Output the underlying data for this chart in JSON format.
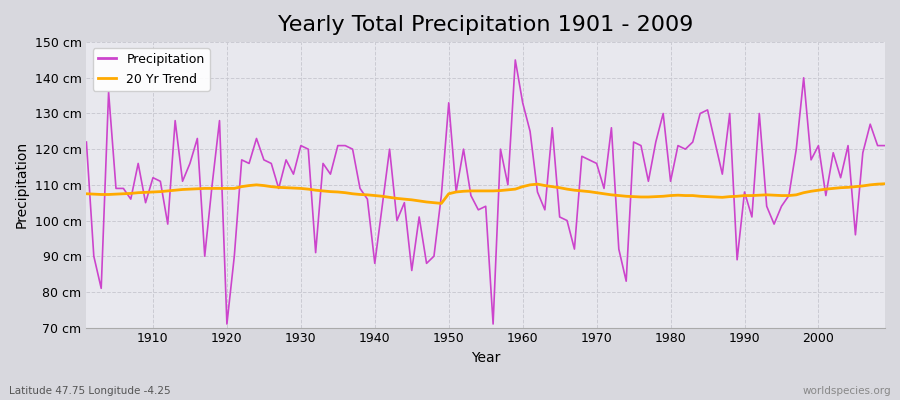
{
  "title": "Yearly Total Precipitation 1901 - 2009",
  "xlabel": "Year",
  "ylabel": "Precipitation",
  "subtitle": "Latitude 47.75 Longitude -4.25",
  "watermark": "worldspecies.org",
  "years": [
    1901,
    1902,
    1903,
    1904,
    1905,
    1906,
    1907,
    1908,
    1909,
    1910,
    1911,
    1912,
    1913,
    1914,
    1915,
    1916,
    1917,
    1918,
    1919,
    1920,
    1921,
    1922,
    1923,
    1924,
    1925,
    1926,
    1927,
    1928,
    1929,
    1930,
    1931,
    1932,
    1933,
    1934,
    1935,
    1936,
    1937,
    1938,
    1939,
    1940,
    1941,
    1942,
    1943,
    1944,
    1945,
    1946,
    1947,
    1948,
    1949,
    1950,
    1951,
    1952,
    1953,
    1954,
    1955,
    1956,
    1957,
    1958,
    1959,
    1960,
    1961,
    1962,
    1963,
    1964,
    1965,
    1966,
    1967,
    1968,
    1969,
    1970,
    1971,
    1972,
    1973,
    1974,
    1975,
    1976,
    1977,
    1978,
    1979,
    1980,
    1981,
    1982,
    1983,
    1984,
    1985,
    1986,
    1987,
    1988,
    1989,
    1990,
    1991,
    1992,
    1993,
    1994,
    1995,
    1996,
    1997,
    1998,
    1999,
    2000,
    2001,
    2002,
    2003,
    2004,
    2005,
    2006,
    2007,
    2008,
    2009
  ],
  "precipitation": [
    122,
    90,
    81,
    136,
    109,
    109,
    106,
    116,
    105,
    112,
    111,
    99,
    128,
    111,
    116,
    123,
    90,
    110,
    128,
    71,
    90,
    117,
    116,
    123,
    117,
    116,
    109,
    117,
    113,
    121,
    120,
    91,
    116,
    113,
    121,
    121,
    120,
    109,
    106,
    88,
    104,
    120,
    100,
    105,
    86,
    101,
    88,
    90,
    107,
    133,
    108,
    120,
    107,
    103,
    104,
    71,
    120,
    110,
    145,
    133,
    125,
    108,
    103,
    126,
    101,
    100,
    92,
    118,
    117,
    116,
    109,
    126,
    92,
    83,
    122,
    121,
    111,
    122,
    130,
    111,
    121,
    120,
    122,
    130,
    131,
    122,
    113,
    130,
    89,
    108,
    101,
    130,
    104,
    99,
    104,
    107,
    120,
    140,
    117,
    121,
    107,
    119,
    112,
    121,
    96,
    119,
    127,
    121,
    121
  ],
  "trend": [
    107.5,
    107.4,
    107.3,
    107.3,
    107.4,
    107.5,
    107.6,
    107.8,
    107.9,
    108.0,
    108.1,
    108.3,
    108.5,
    108.7,
    108.8,
    108.9,
    109.0,
    109.0,
    109.0,
    109.0,
    109.0,
    109.5,
    109.8,
    110.0,
    109.8,
    109.5,
    109.3,
    109.2,
    109.1,
    109.0,
    108.8,
    108.5,
    108.3,
    108.1,
    108.0,
    107.8,
    107.5,
    107.3,
    107.2,
    107.0,
    106.8,
    106.5,
    106.2,
    106.0,
    105.8,
    105.5,
    105.2,
    105.0,
    104.8,
    107.5,
    108.0,
    108.2,
    108.3,
    108.3,
    108.3,
    108.3,
    108.4,
    108.6,
    108.8,
    109.5,
    110.0,
    110.2,
    109.8,
    109.5,
    109.2,
    108.8,
    108.5,
    108.3,
    108.1,
    107.8,
    107.5,
    107.2,
    107.0,
    106.8,
    106.7,
    106.6,
    106.6,
    106.7,
    106.8,
    107.0,
    107.1,
    107.0,
    107.0,
    106.8,
    106.7,
    106.6,
    106.5,
    106.7,
    106.8,
    107.0,
    107.0,
    107.1,
    107.2,
    107.1,
    107.0,
    107.0,
    107.2,
    107.8,
    108.2,
    108.5,
    108.8,
    109.0,
    109.2,
    109.3,
    109.5,
    109.7,
    110.0,
    110.2,
    110.3
  ],
  "precip_color": "#cc44cc",
  "trend_color": "#ffaa00",
  "plot_bg_color": "#e8e8ee",
  "outer_bg_color": "#d8d8de",
  "grid_color": "#c8c8d0",
  "ylim": [
    70,
    150
  ],
  "yticks": [
    70,
    80,
    90,
    100,
    110,
    120,
    130,
    140,
    150
  ],
  "ytick_labels": [
    "70 cm",
    "80 cm",
    "90 cm",
    "100 cm",
    "110 cm",
    "120 cm",
    "130 cm",
    "140 cm",
    "150 cm"
  ],
  "xticks": [
    1910,
    1920,
    1930,
    1940,
    1950,
    1960,
    1970,
    1980,
    1990,
    2000
  ],
  "xlim": [
    1901,
    2009
  ],
  "title_fontsize": 16,
  "label_fontsize": 10,
  "tick_fontsize": 9,
  "legend_fontsize": 9
}
